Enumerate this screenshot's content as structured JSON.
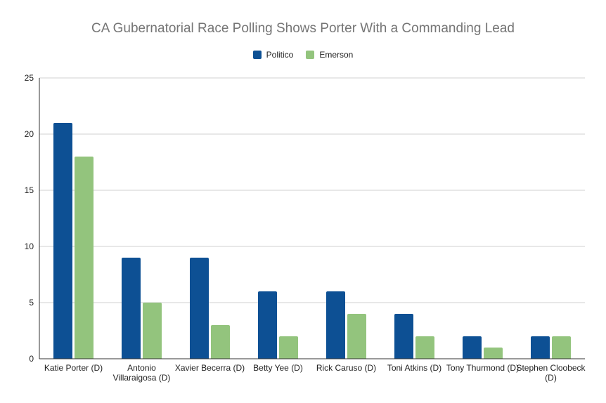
{
  "chart_data": {
    "type": "bar",
    "title": "CA Gubernatorial Race Polling Shows Porter With a Commanding Lead",
    "categories": [
      "Katie Porter (D)",
      "Antonio Villaraigosa (D)",
      "Xavier Becerra (D)",
      "Betty Yee (D)",
      "Rick Caruso (D)",
      "Toni Atkins (D)",
      "Tony Thurmond (D)",
      "Stephen Cloobeck (D)"
    ],
    "series": [
      {
        "name": "Politico",
        "color": "#0d5094",
        "values": [
          21,
          9,
          9,
          6,
          6,
          4,
          2,
          2
        ]
      },
      {
        "name": "Emerson",
        "color": "#93c47d",
        "values": [
          18,
          5,
          3,
          2,
          4,
          2,
          1,
          2
        ]
      }
    ],
    "ylim": [
      0,
      25
    ],
    "yticks": [
      0,
      5,
      10,
      15,
      20,
      25
    ],
    "grid": true,
    "legend_position": "top-center"
  }
}
